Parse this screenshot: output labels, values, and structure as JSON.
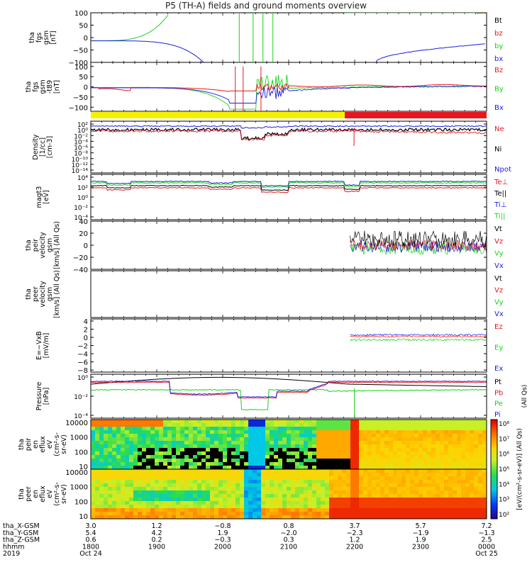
{
  "title": "P5 (TH-A) fields and ground moments overview",
  "colors": {
    "black": "#000000",
    "red": "#e8161e",
    "green": "#19d219",
    "blue": "#1c1ce0",
    "yellow": "#f5f000",
    "orange": "#ff8a00"
  },
  "chart_data": [
    {
      "type": "line",
      "ylabel_lines": [
        "tha",
        "fgs",
        "gsm",
        "[nT]"
      ],
      "ytick_labels": [
        "100",
        "50",
        "0",
        "−50",
        "−100"
      ],
      "ytick_values": [
        100,
        50,
        0,
        -50,
        -100
      ],
      "ylim": [
        -100,
        100
      ],
      "legend": [
        {
          "label": "Bt",
          "color": "black"
        },
        {
          "label": "bz",
          "color": "red"
        },
        {
          "label": "by",
          "color": "green"
        },
        {
          "label": "bx",
          "color": "blue"
        }
      ]
    },
    {
      "type": "line",
      "ylabel_lines": [
        "tha",
        "fgs",
        "gsm",
        "-t89",
        "[nT]"
      ],
      "ytick_labels": [
        "100",
        "50",
        "0",
        "−50",
        "−100"
      ],
      "ytick_values": [
        100,
        50,
        0,
        -50,
        -100
      ],
      "ylim": [
        -120,
        120
      ],
      "legend": [
        {
          "label": "Bz",
          "color": "red"
        },
        {
          "label": "By",
          "color": "green"
        },
        {
          "label": "Bx",
          "color": "blue"
        }
      ]
    },
    {
      "type": "bar",
      "description_colors": [
        "yellow",
        "red"
      ],
      "segments": [
        {
          "x0": 1800,
          "x1": 2151,
          "color": "yellow"
        },
        {
          "x0": 2151,
          "x1": 2400,
          "color": "red"
        }
      ]
    },
    {
      "type": "line",
      "scale": "log",
      "ylabel_lines": [
        "Density",
        "[1/cc]",
        "[cm-3]"
      ],
      "ytick_labels": [
        "10²",
        "10⁰",
        "10⁻²",
        "10⁻⁴",
        "10⁻⁶",
        "10⁻⁸",
        "10⁻¹⁰",
        "10⁻¹²",
        "10⁻¹⁴"
      ],
      "legend": [
        {
          "label": "Ne",
          "color": "red"
        },
        {
          "label": "Ni",
          "color": "black"
        },
        {
          "label": "Npot",
          "color": "blue"
        }
      ]
    },
    {
      "type": "line",
      "scale": "log",
      "ylabel_lines": [
        "magt3",
        "[eV]"
      ],
      "ytick_labels": [
        "10⁴",
        "10²",
        "10⁰",
        "10⁻²",
        "10⁻⁴"
      ],
      "legend": [
        {
          "label": "Te⊥",
          "color": "red"
        },
        {
          "label": "Te||",
          "color": "black"
        },
        {
          "label": "Ti⊥",
          "color": "blue"
        },
        {
          "label": "Ti||",
          "color": "green"
        }
      ]
    },
    {
      "type": "line",
      "ylabel_lines": [
        "tha",
        "peir",
        "velocity",
        "gsm",
        "[km/s] (All Qs)"
      ],
      "ytick_labels": [
        "40",
        "20",
        "0",
        "−20",
        "−40"
      ],
      "ytick_values": [
        40,
        20,
        0,
        -20,
        -40
      ],
      "ylim": [
        -40,
        40
      ],
      "legend": [
        {
          "label": "Vt",
          "color": "black"
        },
        {
          "label": "Vz",
          "color": "red"
        },
        {
          "label": "Vy",
          "color": "green"
        },
        {
          "label": "Vx",
          "color": "blue"
        }
      ]
    },
    {
      "type": "line",
      "ylabel_lines": [
        "tha",
        "peer",
        "velocity",
        "gsm",
        "[km/s] (All Qs)"
      ],
      "ytick_labels": [],
      "legend": [
        {
          "label": "Vt",
          "color": "black"
        },
        {
          "label": "Vz",
          "color": "red"
        },
        {
          "label": "Vy",
          "color": "green"
        },
        {
          "label": "Vx",
          "color": "blue"
        }
      ]
    },
    {
      "type": "line",
      "ylabel_lines": [
        "E=−VxB",
        "[mV/m]"
      ],
      "ytick_labels": [
        "4",
        "2",
        "0",
        "−2",
        "−4",
        "−6",
        "−8"
      ],
      "ytick_values": [
        4,
        2,
        0,
        -2,
        -4,
        -6,
        -8
      ],
      "ylim": [
        -8.5,
        4.5
      ],
      "legend": [
        {
          "label": "Ez",
          "color": "red"
        },
        {
          "label": "Ey",
          "color": "green"
        },
        {
          "label": "Ex",
          "color": "blue"
        }
      ]
    },
    {
      "type": "line",
      "scale": "log",
      "ylabel_lines": [
        "Pressure",
        "[nPa]"
      ],
      "ytick_labels": [
        "10⁰",
        "10⁻²",
        "10⁻⁴"
      ],
      "legend": [
        {
          "label": "Pt",
          "color": "black"
        },
        {
          "label": "Pb",
          "color": "red"
        },
        {
          "label": "Pe",
          "color": "green"
        },
        {
          "label": "Pi",
          "color": "blue"
        }
      ],
      "side_note": "(All Qs)"
    },
    {
      "type": "heatmap",
      "ylabel_lines": [
        "tha",
        "peir",
        "en",
        "eflux",
        "eV",
        "(cm²-s-",
        "sr-eV)"
      ],
      "ytick_labels": [
        "10000",
        "1000",
        "100",
        "10"
      ]
    },
    {
      "type": "heatmap",
      "ylabel_lines": [
        "tha",
        "peer",
        "en",
        "eflux",
        "eV",
        "(cm²-s-",
        "sr-eV)"
      ],
      "ytick_labels": [
        "10000",
        "1000",
        "100",
        "10"
      ]
    }
  ],
  "colorbar": {
    "labels": [
      "10⁸",
      "10⁷",
      "10⁶",
      "10⁵",
      "10⁴",
      "10³",
      "10²"
    ],
    "unit_label": "[eV/(cm²-s-sr-eV)] (All Qs)"
  },
  "x_axis": {
    "rows": [
      {
        "label": "tha_X-GSM",
        "values": [
          "3.0",
          "1.2",
          "−0.8",
          "0.8",
          "3.7",
          "5.7",
          "7.2"
        ]
      },
      {
        "label": "tha_Y-GSM",
        "values": [
          "5.4",
          "4.2",
          "1.9",
          "−2.0",
          "−2.3",
          "−1.9",
          "−1.3"
        ]
      },
      {
        "label": "tha_Z-GSM",
        "values": [
          "0.6",
          "0.2",
          "−0.3",
          "0.3",
          "1.2",
          "1.9",
          "2.5"
        ]
      },
      {
        "label": "hhmm",
        "values": [
          "1800",
          "1900",
          "2000",
          "2100",
          "2200",
          "2300",
          "0000"
        ]
      },
      {
        "label": "2019",
        "values": [
          "Oct 24",
          "",
          "",
          "",
          "",
          "",
          "Oct 25"
        ]
      }
    ],
    "tick_times": [
      1800,
      1900,
      2000,
      2100,
      2200,
      2300,
      2400
    ]
  }
}
